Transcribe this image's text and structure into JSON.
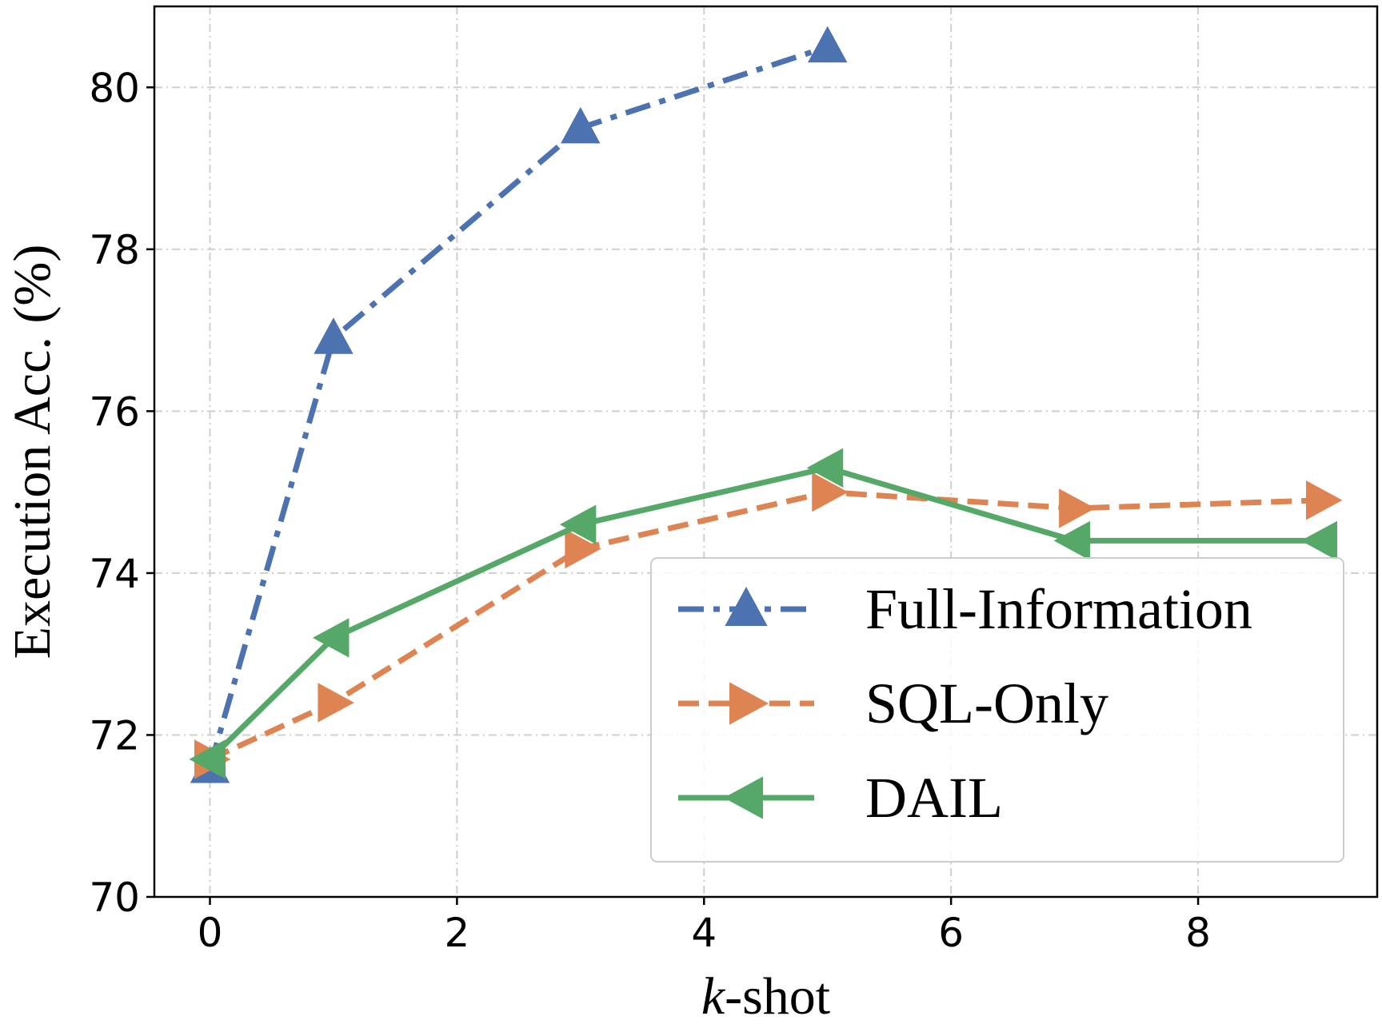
{
  "chart_data": {
    "type": "line",
    "title": "",
    "xlabel_italic": "k",
    "xlabel_rest": "-shot",
    "ylabel": "Execution Acc. (%)",
    "xlim": [
      -0.45,
      9.45
    ],
    "ylim": [
      70,
      81
    ],
    "xticks": [
      0,
      2,
      4,
      6,
      8
    ],
    "yticks": [
      70,
      72,
      74,
      76,
      78,
      80
    ],
    "grid": true,
    "legend_position": "lower-right",
    "series": [
      {
        "name": "Full-Information",
        "color": "#4C72B0",
        "marker": "triangle-up",
        "linestyle": "dashdot",
        "x": [
          0,
          1,
          3,
          5
        ],
        "y": [
          71.6,
          76.9,
          79.5,
          80.5
        ]
      },
      {
        "name": "SQL-Only",
        "color": "#DD8452",
        "marker": "triangle-right",
        "linestyle": "dashed",
        "x": [
          0,
          1,
          3,
          5,
          7,
          9
        ],
        "y": [
          71.7,
          72.4,
          74.3,
          75.0,
          74.8,
          74.9
        ]
      },
      {
        "name": "DAIL",
        "color": "#55A868",
        "marker": "triangle-left",
        "linestyle": "solid",
        "x": [
          0,
          1,
          3,
          5,
          7,
          9
        ],
        "y": [
          71.7,
          73.2,
          74.6,
          75.3,
          74.4,
          74.4
        ]
      }
    ]
  }
}
